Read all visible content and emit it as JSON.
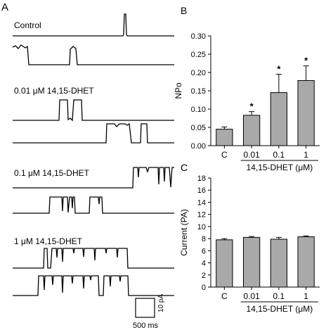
{
  "panel_a": {
    "label": "A",
    "traces": [
      "Control",
      "0.01 μM 14,15-DHET",
      "0.1 μM 14,15-DHET",
      "1 μM 14,15-DHET"
    ],
    "scale_bar": {
      "amplitude": "10 pA",
      "duration": "500 ms"
    }
  },
  "chart_data": [
    {
      "panel": "B",
      "type": "bar",
      "categories": [
        "C",
        "0.01",
        "0.1",
        "1"
      ],
      "values": [
        0.045,
        0.083,
        0.145,
        0.178
      ],
      "errors": [
        0.006,
        0.01,
        0.05,
        0.04
      ],
      "significance": [
        "",
        "*",
        "*",
        "*"
      ],
      "ylabel": "NPo",
      "xlabel": "14,15-DHET (μM)",
      "ylim": [
        0,
        0.3
      ],
      "yticks": [
        "0.00",
        "0.05",
        "0.10",
        "0.15",
        "0.20",
        "0.25",
        "0.30"
      ],
      "colors": {
        "bar": "#a9a9a9",
        "edge": "#000000"
      }
    },
    {
      "panel": "C",
      "type": "bar",
      "categories": [
        "C",
        "0.01",
        "0.1",
        "1"
      ],
      "values": [
        7.8,
        8.2,
        7.9,
        8.3
      ],
      "errors": [
        0.2,
        0.15,
        0.3,
        0.15
      ],
      "significance": [
        "",
        "",
        "",
        ""
      ],
      "ylabel": "Current (PA)",
      "xlabel": "14,15-DHET (μM)",
      "ylim": [
        0,
        18
      ],
      "yticks": [
        "0",
        "2",
        "4",
        "6",
        "8",
        "10",
        "12",
        "14",
        "16",
        "18"
      ],
      "colors": {
        "bar": "#a9a9a9",
        "edge": "#000000"
      }
    }
  ]
}
